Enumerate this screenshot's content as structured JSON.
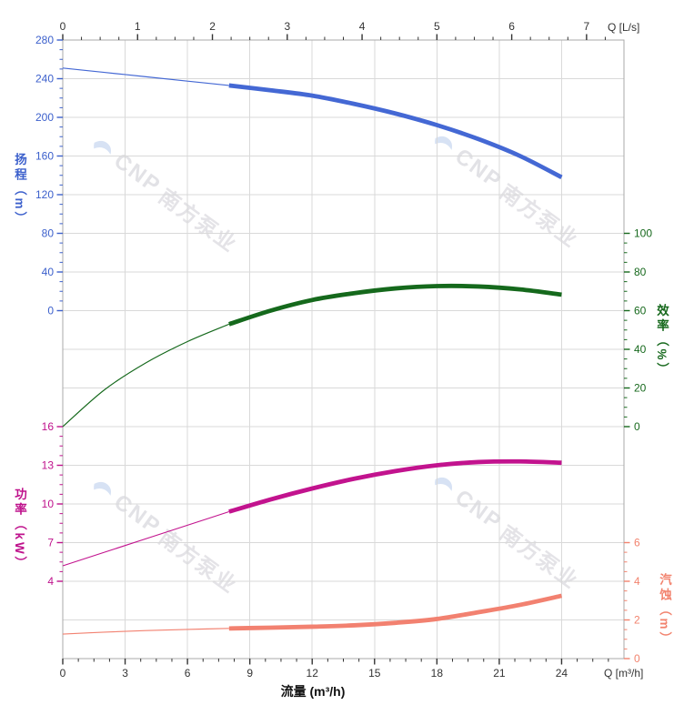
{
  "watermark": {
    "brand": "CNP",
    "name": "南方泵业"
  },
  "chart_data": {
    "type": "line",
    "title": "",
    "x_axis_bottom": {
      "title": "流量 (m³/h)",
      "corner_label": "Q [m³/h]",
      "unit": "m³/h",
      "min": 0,
      "max": 27,
      "major_ticks": [
        0,
        3,
        6,
        9,
        12,
        15,
        18,
        21,
        24
      ],
      "minor_step": 0.75,
      "color": "#333333"
    },
    "x_axis_top": {
      "corner_label": "Q [L/s]",
      "unit": "L/s",
      "min": 0,
      "max": 7.5,
      "major_ticks": [
        0,
        1,
        2,
        3,
        4,
        5,
        6,
        7
      ],
      "minor_step": 0.25,
      "factor_to_m3h": 3.6,
      "color": "#333333"
    },
    "grid": {
      "show": true,
      "color": "#d9d9d9",
      "border_color": "#a9a9a9"
    },
    "y_axes": [
      {
        "id": "head",
        "title": "扬程（m）",
        "side": "left",
        "color": "#3c60cc",
        "major_ticks": [
          280,
          240,
          200,
          160,
          120,
          80,
          40,
          0
        ],
        "minor_step": 10,
        "top_value": 280,
        "bottom_value": 0,
        "top_row": 0,
        "bottom_row": 7
      },
      {
        "id": "efficiency",
        "title": "效率（%）",
        "side": "right",
        "color": "#17691d",
        "major_ticks": [
          100,
          80,
          60,
          40,
          20,
          0
        ],
        "minor_step": 5,
        "top_value": 100,
        "bottom_value": 0,
        "top_row": 5,
        "bottom_row": 10
      },
      {
        "id": "power",
        "title": "功率（kW）",
        "side": "left",
        "color": "#bf128c",
        "major_ticks": [
          16,
          13,
          10,
          7,
          4
        ],
        "minor_step": 0.75,
        "top_value": 16,
        "bottom_value": 4,
        "top_row": 10,
        "bottom_row": 14
      },
      {
        "id": "npsh",
        "title": "汽蚀（m）",
        "side": "right",
        "color": "#f2836e",
        "major_ticks": [
          6,
          4,
          2,
          0
        ],
        "minor_step": 0.5,
        "top_value": 6,
        "bottom_value": 0,
        "top_row": 13,
        "bottom_row": 16
      }
    ],
    "series": [
      {
        "name": "head-curve",
        "axis": "head",
        "color": "#4468d4",
        "rated_from": 8,
        "q": [
          0,
          2,
          4,
          6,
          8,
          10,
          12,
          14,
          16,
          18,
          20,
          22,
          24
        ],
        "values": [
          251,
          246.5,
          242,
          237.5,
          233,
          228,
          222.5,
          214,
          204,
          192,
          177.5,
          160,
          138
        ]
      },
      {
        "name": "efficiency-curve",
        "axis": "efficiency",
        "color": "#15691c",
        "rated_from": 8,
        "q": [
          0,
          2,
          4,
          6,
          8,
          10,
          12,
          14,
          16,
          18,
          20,
          22,
          24
        ],
        "values": [
          0,
          19,
          33,
          44,
          53,
          60,
          65.5,
          69,
          71.5,
          72.7,
          72.5,
          71,
          68.3
        ]
      },
      {
        "name": "power-curve",
        "axis": "power",
        "color": "#c2138e",
        "rated_from": 8,
        "q": [
          0,
          2,
          4,
          6,
          8,
          10,
          12,
          14,
          16,
          18,
          20,
          22,
          24
        ],
        "values": [
          5.2,
          6.25,
          7.3,
          8.35,
          9.4,
          10.35,
          11.2,
          11.95,
          12.55,
          13.0,
          13.25,
          13.3,
          13.2
        ]
      },
      {
        "name": "npsh-curve",
        "axis": "npsh",
        "color": "#f28170",
        "rated_from": 8,
        "q": [
          0,
          2,
          4,
          6,
          8,
          10,
          12,
          14,
          16,
          18,
          20,
          22,
          24
        ],
        "values": [
          1.27,
          1.37,
          1.45,
          1.51,
          1.56,
          1.6,
          1.65,
          1.72,
          1.85,
          2.05,
          2.4,
          2.78,
          3.25
        ]
      }
    ]
  }
}
